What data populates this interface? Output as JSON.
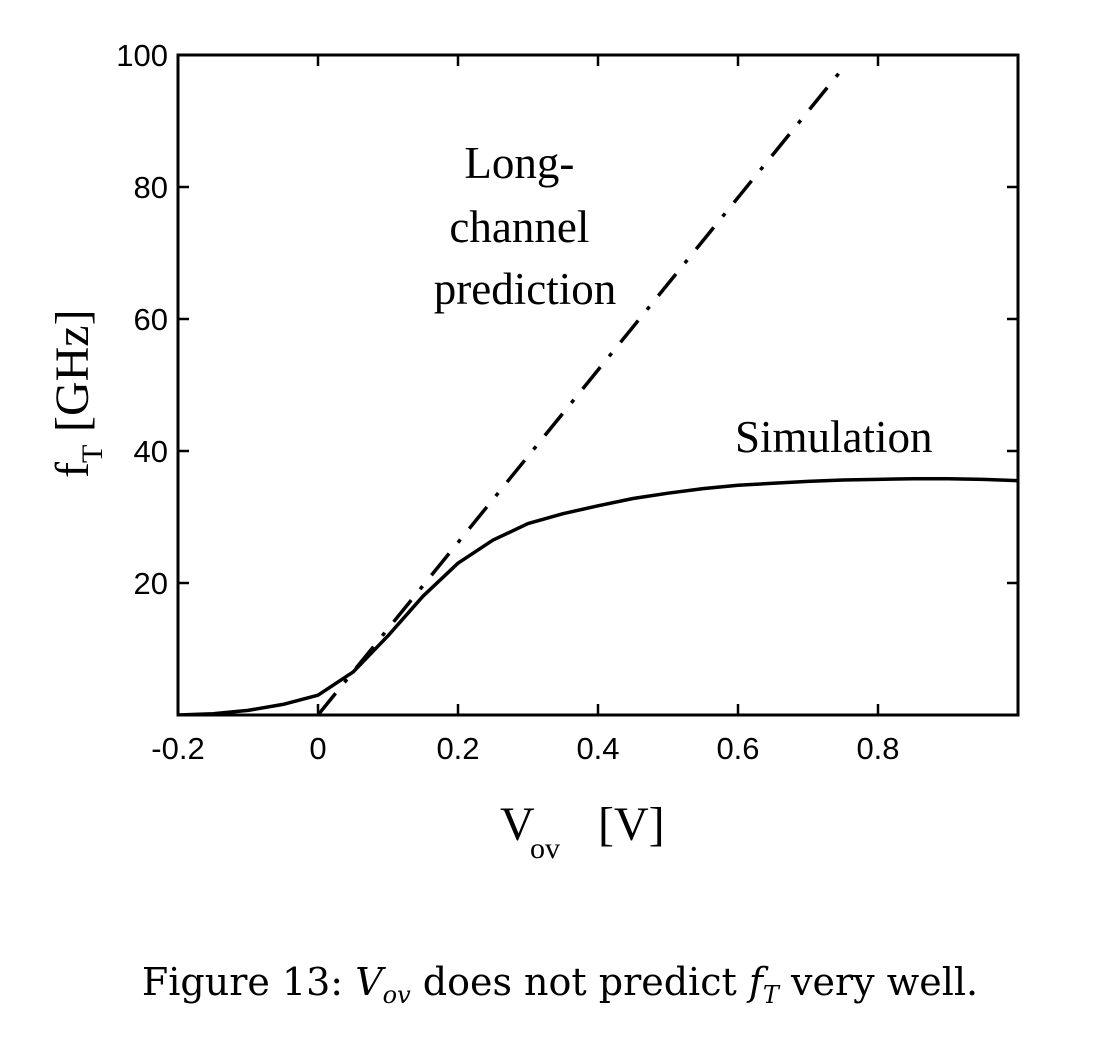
{
  "chart_data": {
    "type": "line",
    "title": "",
    "xlabel": {
      "main": "V",
      "sub": "ov",
      "unit": "[V]"
    },
    "ylabel": {
      "main": "f",
      "sub": "T",
      "unit": "[GHz]"
    },
    "xlim": [
      -0.2,
      1.0
    ],
    "ylim": [
      0,
      100
    ],
    "xticks": [
      -0.2,
      0,
      0.2,
      0.4,
      0.6,
      0.8
    ],
    "xtick_labels": [
      "-0.2",
      "0",
      "0.2",
      "0.4",
      "0.6",
      "0.8"
    ],
    "yticks": [
      20,
      40,
      60,
      80,
      100
    ],
    "ytick_labels": [
      "20",
      "40",
      "60",
      "80",
      "100"
    ],
    "grid": false,
    "series": [
      {
        "name": "Simulation",
        "style": "solid",
        "color": "#000000",
        "x": [
          -0.2,
          -0.15,
          -0.1,
          -0.05,
          0.0,
          0.05,
          0.1,
          0.15,
          0.2,
          0.25,
          0.3,
          0.35,
          0.4,
          0.45,
          0.5,
          0.55,
          0.6,
          0.65,
          0.7,
          0.75,
          0.8,
          0.85,
          0.9,
          0.95,
          1.0
        ],
        "y": [
          0.0,
          0.2,
          0.7,
          1.6,
          3.0,
          6.5,
          12.0,
          18.0,
          23.0,
          26.5,
          29.0,
          30.5,
          31.7,
          32.8,
          33.6,
          34.3,
          34.8,
          35.1,
          35.4,
          35.6,
          35.7,
          35.8,
          35.8,
          35.7,
          35.5
        ]
      },
      {
        "name": "Long-channel prediction",
        "style": "dashdot",
        "color": "#000000",
        "x": [
          0.0,
          0.75
        ],
        "y": [
          0.0,
          98.0
        ]
      }
    ],
    "annotations": [
      {
        "id": "long-channel",
        "lines": [
          "Long-",
          "channel",
          "prediction"
        ]
      },
      {
        "id": "simulation",
        "lines": [
          "Simulation"
        ]
      }
    ]
  },
  "caption": {
    "prefix": "Figure 13:",
    "var1_main": "V",
    "var1_sub": "ov",
    "middle": "does not predict",
    "var2_main": "f",
    "var2_sub": "T",
    "suffix": "very well."
  }
}
